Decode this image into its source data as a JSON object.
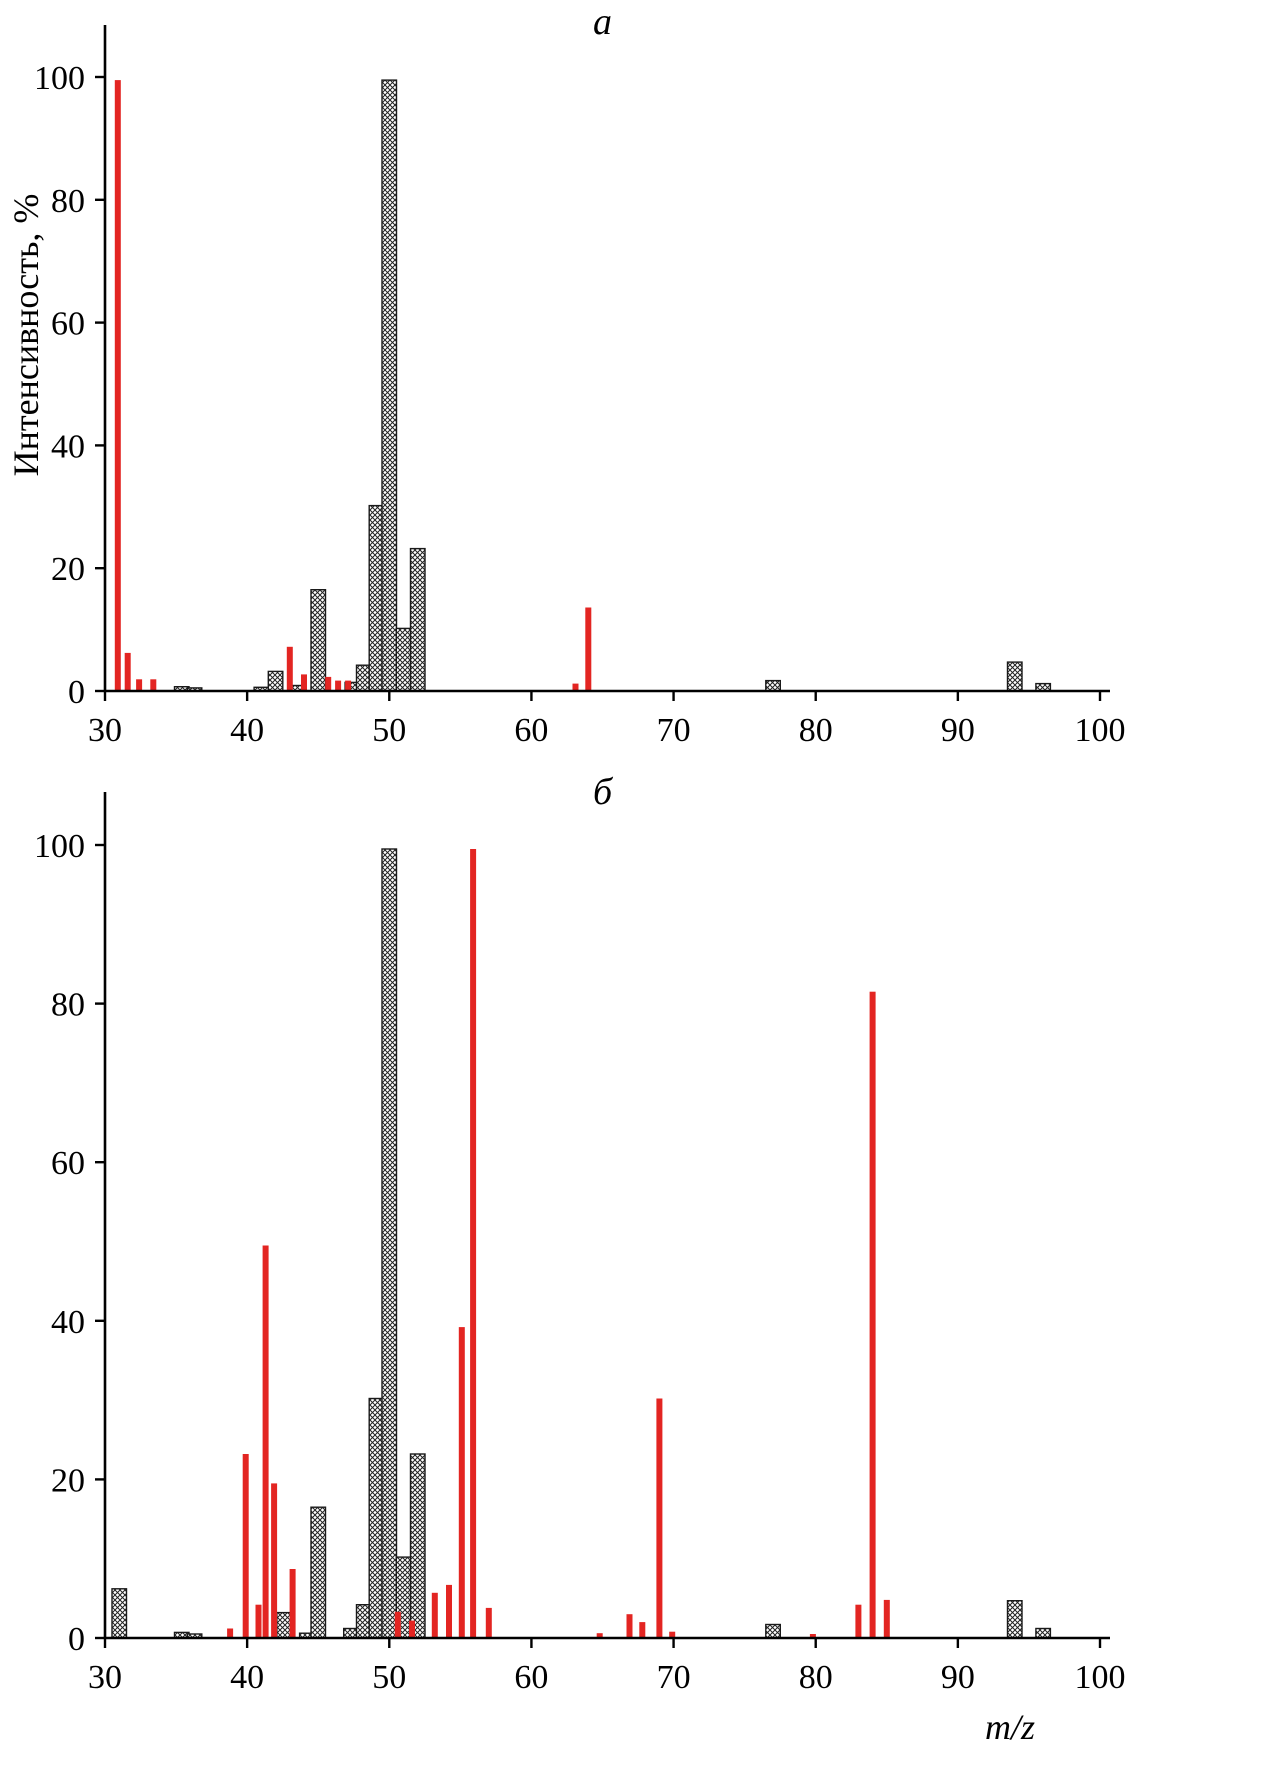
{
  "figure": {
    "ylabel": "Интенсивность, %",
    "xlabel": "m/z"
  },
  "colors": {
    "black_series": "#1a1a1a",
    "red_series": "#e32522",
    "axis": "#000000"
  },
  "chart_data": [
    {
      "type": "bar",
      "title": "а",
      "xlabel": "m/z",
      "ylabel": "Интенсивность, %",
      "xlim": [
        30,
        100
      ],
      "ylim": [
        0,
        100
      ],
      "xticks": [
        30,
        40,
        50,
        60,
        70,
        80,
        90,
        100
      ],
      "yticks": [
        0,
        20,
        40,
        60,
        80,
        100
      ],
      "grid": false,
      "legend": "none",
      "series": [
        {
          "name": "hatched-black",
          "color": "#1a1a1a",
          "style": "crosshatch",
          "points": [
            [
              35.4,
              0.7
            ],
            [
              36.3,
              0.5
            ],
            [
              41,
              0.6
            ],
            [
              42,
              3.2
            ],
            [
              43.6,
              0.9
            ],
            [
              45,
              16.5
            ],
            [
              47.4,
              1.4
            ],
            [
              48.2,
              4.2
            ],
            [
              49.1,
              30.2
            ],
            [
              50,
              99.5
            ],
            [
              51,
              10.2
            ],
            [
              52,
              23.2
            ],
            [
              77,
              1.7
            ],
            [
              94,
              4.7
            ],
            [
              96,
              1.2
            ]
          ]
        },
        {
          "name": "red",
          "color": "#e32522",
          "style": "solid",
          "points": [
            [
              30.9,
              99.5
            ],
            [
              31.6,
              6.2
            ],
            [
              32.4,
              1.9
            ],
            [
              33.4,
              1.9
            ],
            [
              43,
              7.2
            ],
            [
              44,
              2.7
            ],
            [
              45.7,
              2.3
            ],
            [
              46.4,
              1.7
            ],
            [
              47.1,
              1.7
            ],
            [
              63.1,
              1.2
            ],
            [
              64,
              13.6
            ]
          ]
        }
      ]
    },
    {
      "type": "bar",
      "title": "б",
      "xlabel": "m/z",
      "ylabel": "Интенсивность, %",
      "xlim": [
        30,
        100
      ],
      "ylim": [
        0,
        100
      ],
      "xticks": [
        30,
        40,
        50,
        60,
        70,
        80,
        90,
        100
      ],
      "yticks": [
        0,
        20,
        40,
        60,
        80,
        100
      ],
      "grid": false,
      "legend": "none",
      "series": [
        {
          "name": "hatched-black",
          "color": "#1a1a1a",
          "style": "crosshatch",
          "points": [
            [
              31,
              6.2
            ],
            [
              35.4,
              0.7
            ],
            [
              36.3,
              0.5
            ],
            [
              42.6,
              3.2
            ],
            [
              44.2,
              0.6
            ],
            [
              45,
              16.5
            ],
            [
              47.3,
              1.2
            ],
            [
              48.2,
              4.2
            ],
            [
              49.1,
              30.2
            ],
            [
              50,
              99.5
            ],
            [
              51,
              10.2
            ],
            [
              52,
              23.2
            ],
            [
              77,
              1.7
            ],
            [
              94,
              4.7
            ],
            [
              96,
              1.2
            ]
          ]
        },
        {
          "name": "red",
          "color": "#e32522",
          "style": "solid",
          "points": [
            [
              38.8,
              1.2
            ],
            [
              39.9,
              23.2
            ],
            [
              40.8,
              4.2
            ],
            [
              41.3,
              49.5
            ],
            [
              41.9,
              19.5
            ],
            [
              43.2,
              8.7
            ],
            [
              50.6,
              3.3
            ],
            [
              51.6,
              2.2
            ],
            [
              53.2,
              5.7
            ],
            [
              54.2,
              6.7
            ],
            [
              55.1,
              39.2
            ],
            [
              55.9,
              99.5
            ],
            [
              57,
              3.8
            ],
            [
              64.8,
              0.6
            ],
            [
              66.9,
              3.0
            ],
            [
              67.8,
              2.0
            ],
            [
              69,
              30.2
            ],
            [
              69.9,
              0.8
            ],
            [
              79.8,
              0.5
            ],
            [
              83,
              4.2
            ],
            [
              84,
              81.5
            ],
            [
              85,
              4.8
            ]
          ]
        }
      ]
    }
  ]
}
